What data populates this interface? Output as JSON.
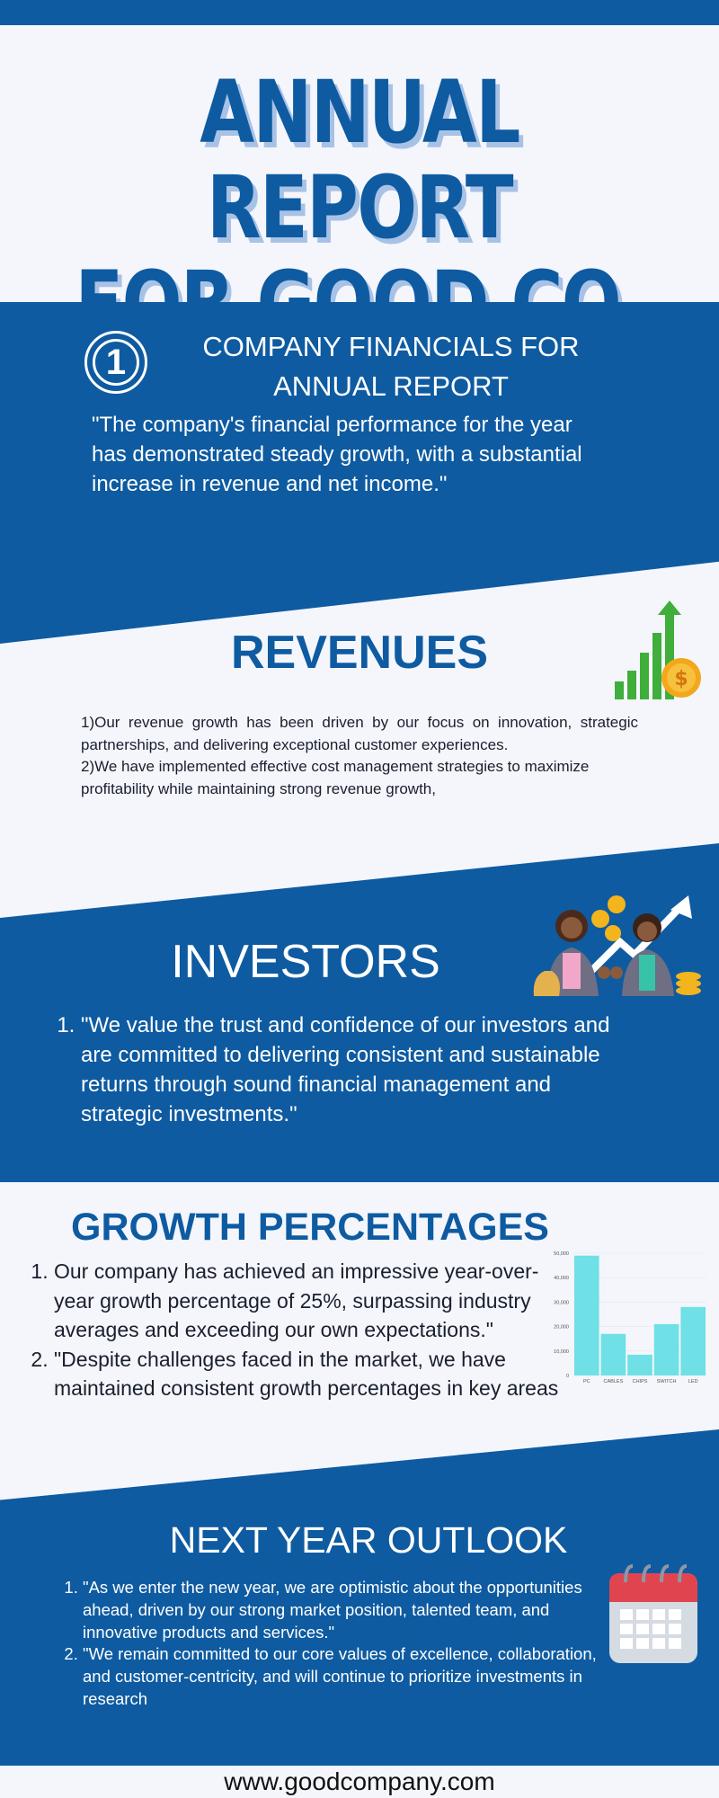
{
  "title": {
    "line1": "ANNUAL REPORT",
    "line2": "FOR GOOD CO."
  },
  "section1": {
    "number": "1",
    "title_line1": "COMPANY FINANCIALS FOR",
    "title_line2": "ANNUAL REPORT",
    "quote": "\"The company's financial performance for the year has demonstrated steady growth, with a substantial increase in revenue and net income.\""
  },
  "revenues": {
    "title": "REVENUES",
    "p1": "1)Our revenue growth has been driven by our focus on innovation, strategic partnerships, and delivering exceptional customer experiences.",
    "p2": "2)We have implemented effective cost management strategies to maximize profitability while maintaining strong revenue growth,"
  },
  "investors": {
    "title": "INVESTORS",
    "items": [
      "\"We value the trust and confidence of our investors and are committed to delivering consistent and sustainable returns through sound financial management and strategic investments.\""
    ]
  },
  "growth": {
    "title": "GROWTH PERCENTAGES",
    "items": [
      "Our company has achieved an impressive year-over-year growth percentage of 25%, surpassing industry averages and exceeding our own expectations.\"",
      "\"Despite challenges faced in the market, we have maintained consistent growth percentages in key areas"
    ]
  },
  "chart_data": {
    "type": "bar",
    "categories": [
      "PC",
      "CABLES",
      "CHIPS",
      "SWITCH",
      "LED"
    ],
    "values": [
      49000,
      17000,
      8500,
      21000,
      28000
    ],
    "ylim": [
      0,
      50000
    ],
    "yticks": [
      "0",
      "10,000",
      "20,000",
      "30,000",
      "40,000",
      "50,000"
    ],
    "color": "#6ee0e6"
  },
  "outlook": {
    "title": "NEXT YEAR OUTLOOK",
    "items": [
      "\"As we enter the new year, we are optimistic about the opportunities ahead, driven by our strong market position, talented team, and innovative products and services.\"",
      "\"We remain committed to our core values of excellence, collaboration, and customer-centricity, and will continue to prioritize investments in research"
    ]
  },
  "footer": {
    "url": "www.goodcompany.com"
  },
  "colors": {
    "brand_blue": "#0e5ba1",
    "page_bg": "#f4f6fc",
    "shadow": "#a8c2e6"
  }
}
